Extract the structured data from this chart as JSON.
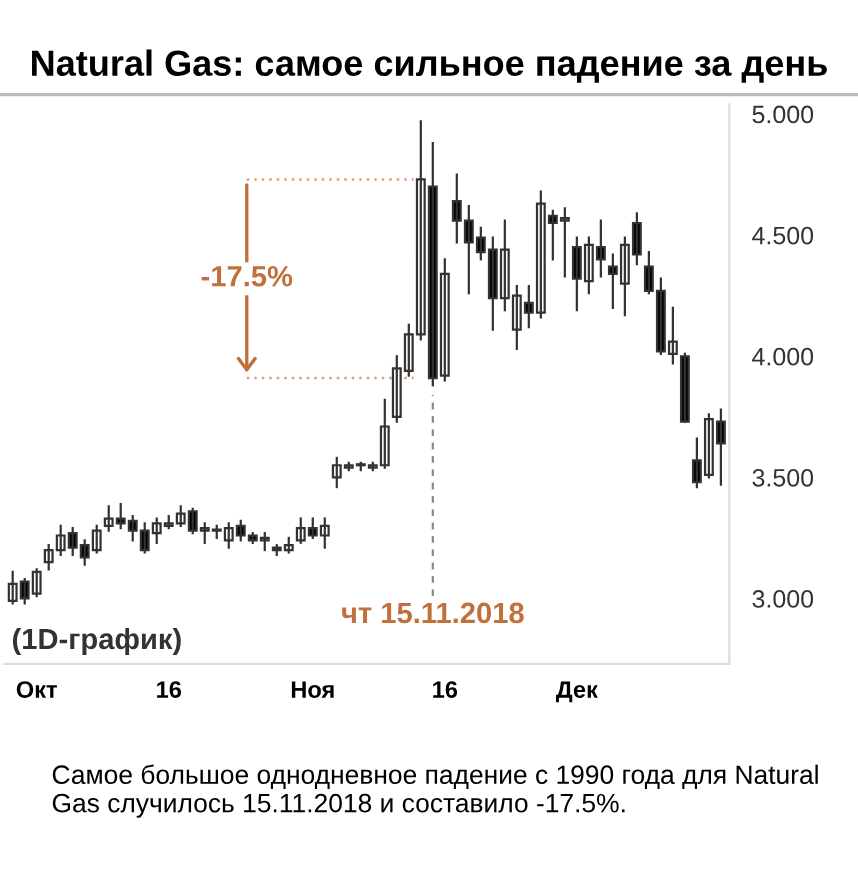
{
  "chart_data": {
    "type": "candlestick",
    "title": "Natural Gas: самое сильное падение за день",
    "categories": [
      null,
      null,
      "Окт",
      null,
      null,
      null,
      null,
      null,
      null,
      null,
      null,
      null,
      null,
      "16",
      null,
      null,
      null,
      null,
      null,
      null,
      null,
      null,
      null,
      null,
      null,
      "Ноя",
      null,
      null,
      null,
      null,
      null,
      null,
      null,
      null,
      null,
      null,
      "16",
      null,
      null,
      null,
      null,
      null,
      null,
      null,
      null,
      null,
      null,
      "Дек",
      null,
      null,
      null,
      null,
      null,
      null,
      null,
      null,
      null,
      null,
      null,
      null
    ],
    "ohlc": [
      [
        2.99,
        3.11,
        2.98,
        3.06
      ],
      [
        3.07,
        3.08,
        2.98,
        3.0
      ],
      [
        3.02,
        3.12,
        3.01,
        3.11
      ],
      [
        3.15,
        3.22,
        3.12,
        3.2
      ],
      [
        3.2,
        3.3,
        3.18,
        3.26
      ],
      [
        3.27,
        3.29,
        3.18,
        3.21
      ],
      [
        3.22,
        3.24,
        3.14,
        3.17
      ],
      [
        3.2,
        3.3,
        3.19,
        3.28
      ],
      [
        3.3,
        3.38,
        3.28,
        3.33
      ],
      [
        3.33,
        3.39,
        3.29,
        3.31
      ],
      [
        3.32,
        3.34,
        3.24,
        3.28
      ],
      [
        3.28,
        3.31,
        3.19,
        3.2
      ],
      [
        3.27,
        3.33,
        3.23,
        3.31
      ],
      [
        3.3,
        3.34,
        3.29,
        3.31
      ],
      [
        3.31,
        3.38,
        3.3,
        3.35
      ],
      [
        3.36,
        3.37,
        3.27,
        3.28
      ],
      [
        3.28,
        3.31,
        3.23,
        3.29
      ],
      [
        3.28,
        3.3,
        3.25,
        3.28
      ],
      [
        3.24,
        3.31,
        3.21,
        3.29
      ],
      [
        3.3,
        3.32,
        3.24,
        3.26
      ],
      [
        3.26,
        3.27,
        3.23,
        3.24
      ],
      [
        3.24,
        3.27,
        3.2,
        3.25
      ],
      [
        3.21,
        3.22,
        3.18,
        3.2
      ],
      [
        3.2,
        3.25,
        3.19,
        3.22
      ],
      [
        3.24,
        3.33,
        3.23,
        3.29
      ],
      [
        3.29,
        3.33,
        3.25,
        3.26
      ],
      [
        3.26,
        3.33,
        3.21,
        3.3
      ],
      [
        3.5,
        3.58,
        3.46,
        3.55
      ],
      [
        3.54,
        3.56,
        3.53,
        3.55
      ],
      [
        3.55,
        3.56,
        3.53,
        3.55
      ],
      [
        3.54,
        3.56,
        3.53,
        3.55
      ],
      [
        3.55,
        3.82,
        3.54,
        3.71
      ],
      [
        3.75,
        4.0,
        3.73,
        3.95
      ],
      [
        3.94,
        4.13,
        3.92,
        4.09
      ],
      [
        4.09,
        4.97,
        4.07,
        4.73
      ],
      [
        4.7,
        4.88,
        3.88,
        3.91
      ],
      [
        3.92,
        4.4,
        3.9,
        4.34
      ],
      [
        4.64,
        4.75,
        4.47,
        4.56
      ],
      [
        4.56,
        4.62,
        4.26,
        4.47
      ],
      [
        4.49,
        4.53,
        4.4,
        4.43
      ],
      [
        4.44,
        4.49,
        4.11,
        4.24
      ],
      [
        4.24,
        4.56,
        4.19,
        4.44
      ],
      [
        4.11,
        4.29,
        4.03,
        4.25
      ],
      [
        4.22,
        4.29,
        4.12,
        4.18
      ],
      [
        4.18,
        4.68,
        4.16,
        4.63
      ],
      [
        4.58,
        4.6,
        4.4,
        4.55
      ],
      [
        4.56,
        4.61,
        4.33,
        4.57
      ],
      [
        4.45,
        4.49,
        4.19,
        4.32
      ],
      [
        4.31,
        4.49,
        4.26,
        4.46
      ],
      [
        4.45,
        4.56,
        4.33,
        4.4
      ],
      [
        4.37,
        4.42,
        4.2,
        4.34
      ],
      [
        4.3,
        4.49,
        4.17,
        4.46
      ],
      [
        4.55,
        4.59,
        4.38,
        4.42
      ],
      [
        4.37,
        4.43,
        4.26,
        4.27
      ],
      [
        4.27,
        4.32,
        4.01,
        4.02
      ],
      [
        4.01,
        4.2,
        3.97,
        4.06
      ],
      [
        4.0,
        4.01,
        3.73,
        3.73
      ],
      [
        3.57,
        3.66,
        3.46,
        3.48
      ],
      [
        3.51,
        3.76,
        3.5,
        3.74
      ],
      [
        3.73,
        3.78,
        3.47,
        3.64
      ]
    ],
    "ylim": [
      2.73,
      5.04
    ],
    "yticks": [
      {
        "value": 3,
        "label": "3.000"
      },
      {
        "value": 3.5,
        "label": "3.500"
      },
      {
        "value": 4,
        "label": "4.000"
      },
      {
        "value": 4.5,
        "label": "4.500"
      },
      {
        "value": 5,
        "label": "5.000"
      }
    ],
    "ref_lines": [
      {
        "axis": "y",
        "value": 4.73,
        "color": "#d9a07a",
        "line_style": "dotted"
      },
      {
        "axis": "y",
        "value": 3.91,
        "color": "#d9a07a",
        "line_style": "dotted"
      }
    ],
    "annotations": [
      "-17.5%",
      "чт 15.11.2018",
      "(1D-график)",
      "Самое большое однодневное падение с 1990 года для Natural Gas случилось 15.11.2018 и составило -17.5%."
    ]
  }
}
